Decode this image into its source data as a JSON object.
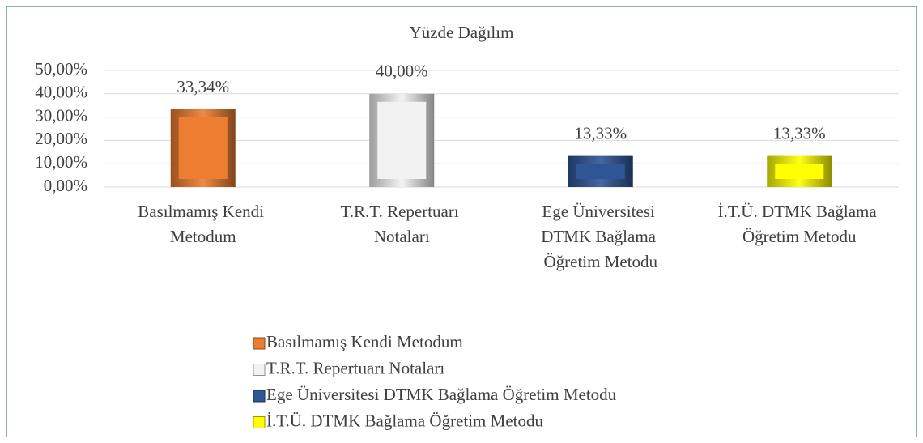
{
  "chart_data": {
    "type": "bar",
    "title": "Yüzde Dağılım",
    "categories": [
      "Basılmamış Kendi Metodum",
      "T.R.T. Repertuarı Notaları",
      "Ege Üniversitesi DTMK Bağlama Öğretim Metodu",
      "İ.T.Ü. DTMK Bağlama Öğretim Metodu"
    ],
    "values": [
      33.34,
      40,
      13.33,
      13.33
    ],
    "value_labels": [
      "33,34%",
      "40,00%",
      "13,33%",
      "13,33%"
    ],
    "colors": [
      "#ed7d31",
      "#f2f2f2",
      "#2f5597",
      "#ffff00"
    ],
    "ylim": [
      0,
      50
    ],
    "yticks": [
      {
        "value": 0,
        "label": "0,00%"
      },
      {
        "value": 10,
        "label": "10,00%"
      },
      {
        "value": 20,
        "label": "20,00%"
      },
      {
        "value": 30,
        "label": "30,00%"
      },
      {
        "value": 40,
        "label": "40,00%"
      },
      {
        "value": 50,
        "label": "50,00%"
      }
    ],
    "grid": true,
    "legend": "bottom"
  }
}
